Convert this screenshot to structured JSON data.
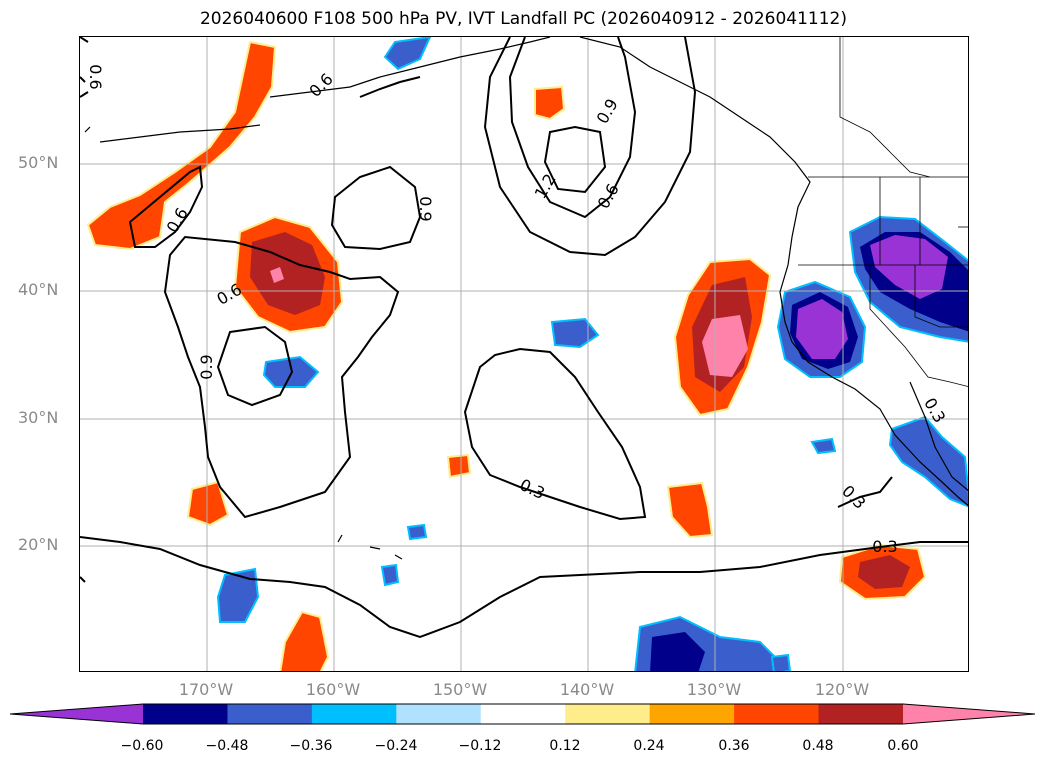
{
  "title": "2026040600 F108 500 hPa PV, IVT Landfall PC (2026040912 - 2026041112)",
  "lat_labels": [
    "50°N",
    "40°N",
    "30°N",
    "20°N"
  ],
  "lon_labels": [
    "170°W",
    "160°W",
    "150°W",
    "140°W",
    "130°W",
    "120°W"
  ],
  "colorbar": {
    "ticks": [
      "−0.60",
      "−0.48",
      "−0.36",
      "−0.24",
      "−0.12",
      "0.12",
      "0.24",
      "0.36",
      "0.48",
      "0.60"
    ],
    "colors": [
      "#9a33d6",
      "#00008b",
      "#3a5fcd",
      "#00bfff",
      "#b0e2ff",
      "#ffffff",
      "#ffec8b",
      "#ffa500",
      "#ff4500",
      "#b22222",
      "#ff82ab"
    ]
  },
  "contour_labels": [
    "0.6",
    "0.6",
    "0.9",
    "0.6",
    "0.9",
    "1.2",
    "0.6",
    "0.6",
    "0.9",
    "0.3",
    "0.3",
    "0.3",
    "0.3"
  ],
  "colors": {
    "grid": "#b0b0b0",
    "contour": "#000000",
    "coast": "#000000",
    "axis_label": "#8a8a8a"
  }
}
